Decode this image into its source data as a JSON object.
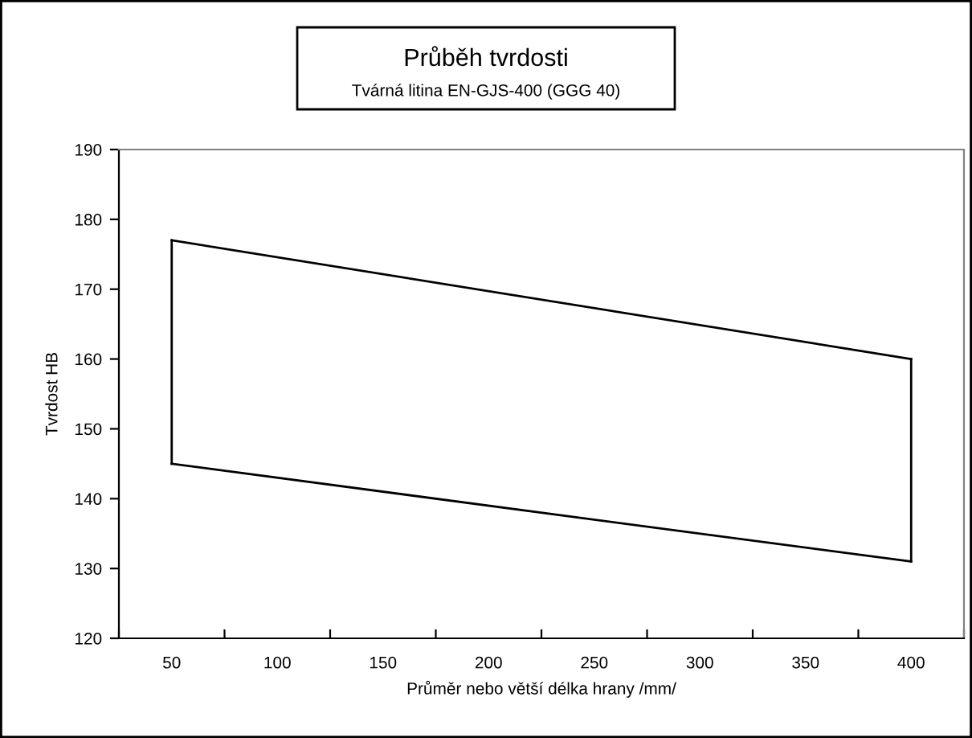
{
  "chart_data": {
    "type": "line",
    "title": "Průběh tvrdosti",
    "subtitle": "Tvárná litina EN-GJS-400 (GGG 40)",
    "xlabel": "Průměr nebo větší délka hrany /mm/",
    "ylabel": "Tvrdost HB",
    "categories": [
      "50",
      "100",
      "150",
      "200",
      "250",
      "300",
      "350",
      "400"
    ],
    "series": [
      {
        "color": "#000000",
        "values": [
          177,
          null,
          null,
          null,
          null,
          null,
          null,
          160
        ]
      },
      {
        "color": "#000000",
        "values": [
          145,
          null,
          null,
          null,
          null,
          null,
          null,
          131
        ]
      },
      {
        "color": "#000000",
        "x": [
          "50",
          "50"
        ],
        "values": [
          145,
          177
        ]
      },
      {
        "color": "#000000",
        "x": [
          "400",
          "400"
        ],
        "values": [
          131,
          160
        ]
      }
    ],
    "ylim": [
      120,
      190
    ],
    "yticks": [
      120,
      130,
      140,
      150,
      160,
      170,
      180,
      190
    ],
    "grid": false,
    "legend": false,
    "marker": "none",
    "line_style": "solid"
  }
}
